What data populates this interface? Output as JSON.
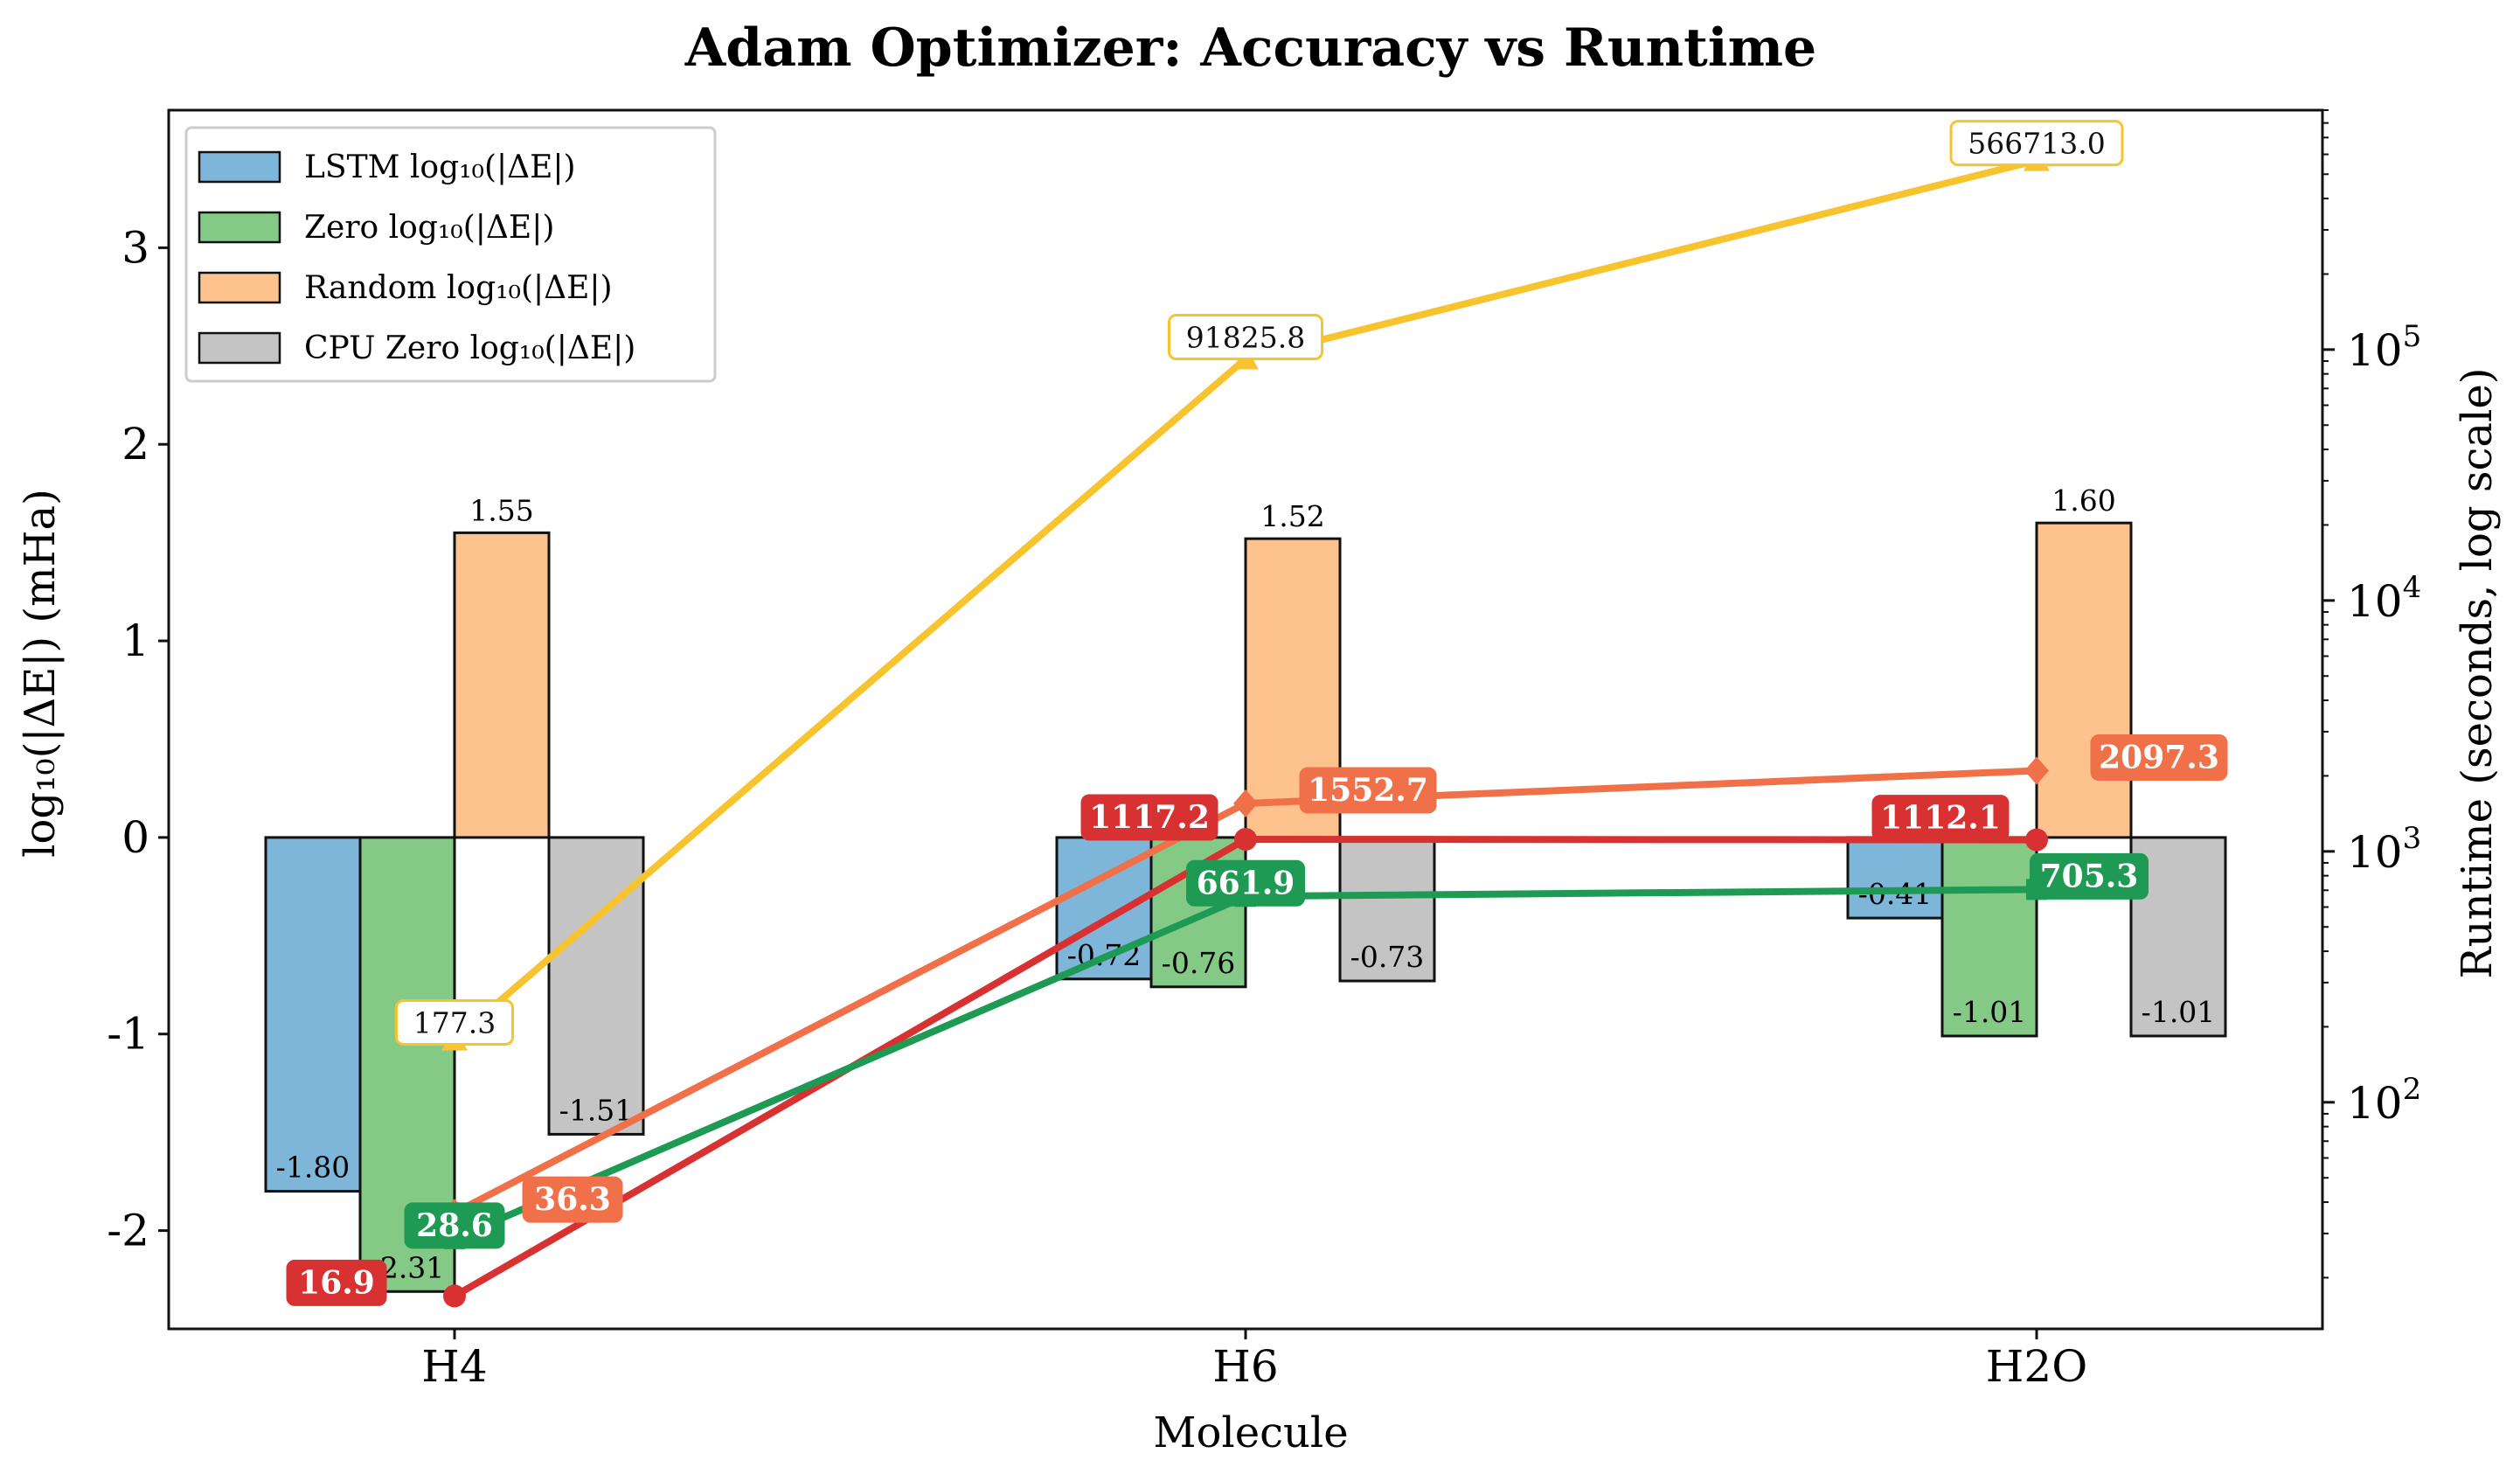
{
  "chart_data": {
    "type": "bar",
    "title": "Adam Optimizer: Accuracy vs Runtime",
    "xlabel": "Molecule",
    "ylabel": "log₁₀(|ΔE|) (mHa)",
    "ylabel_right": "Runtime (seconds, log scale)",
    "categories": [
      "H4",
      "H6",
      "H2O"
    ],
    "ylim": [
      -2.5,
      3.7
    ],
    "yticks": [
      -2,
      -1,
      0,
      1,
      2,
      3
    ],
    "ytick_labels": [
      "-2",
      "-1",
      "0",
      "1",
      "2",
      "3"
    ],
    "y2_scale": "log",
    "y2lim": [
      12.5,
      900000
    ],
    "y2ticks": [
      100,
      1000,
      10000,
      100000
    ],
    "y2tick_labels": [
      {
        "base": "10",
        "exp": "2"
      },
      {
        "base": "10",
        "exp": "3"
      },
      {
        "base": "10",
        "exp": "4"
      },
      {
        "base": "10",
        "exp": "5"
      }
    ],
    "legend_location": "upper left",
    "bar_series": [
      {
        "name": "LSTM  log₁₀(|ΔE|)",
        "color": "#7eb6da",
        "values": [
          -1.8,
          -0.72,
          -0.41
        ],
        "labels": [
          "-1.80",
          "-0.72",
          "-0.41"
        ]
      },
      {
        "name": "Zero  log₁₀(|ΔE|)",
        "color": "#85c987",
        "values": [
          -2.31,
          -0.76,
          -1.01
        ],
        "labels": [
          "-2.31",
          "-0.76",
          "-1.01"
        ]
      },
      {
        "name": "Random  log₁₀(|ΔE|)",
        "color": "#fec28e",
        "values": [
          1.55,
          1.52,
          1.6
        ],
        "labels": [
          "1.55",
          "1.52",
          "1.60"
        ]
      },
      {
        "name": "CPU Zero  log₁₀(|ΔE|)",
        "color": "#c4c4c4",
        "values": [
          -1.51,
          -0.73,
          -1.01
        ],
        "labels": [
          "-1.51",
          "-0.73",
          "-1.01"
        ]
      }
    ],
    "runtime_series": [
      {
        "color": "#d73231",
        "marker": "circle",
        "values": [
          16.9,
          1117.2,
          1112.1
        ],
        "labels": [
          "16.9",
          "1117.2",
          "1112.1"
        ],
        "label_style": "filled"
      },
      {
        "color": "#f0704a",
        "marker": "diamond",
        "values": [
          36.3,
          1552.7,
          2097.3
        ],
        "labels": [
          "36.3",
          "1552.7",
          "2097.3"
        ],
        "label_style": "filled"
      },
      {
        "color": "#1f9a54",
        "marker": "square",
        "values": [
          28.6,
          661.9,
          705.3
        ],
        "labels": [
          "28.6",
          "661.9",
          "705.3"
        ],
        "label_style": "filled"
      },
      {
        "color": "#f7c430",
        "marker": "triangle",
        "values": [
          177.3,
          91825.8,
          566713.0
        ],
        "labels": [
          "177.3",
          "91825.8",
          "566713.0"
        ],
        "label_style": "outline"
      }
    ]
  }
}
